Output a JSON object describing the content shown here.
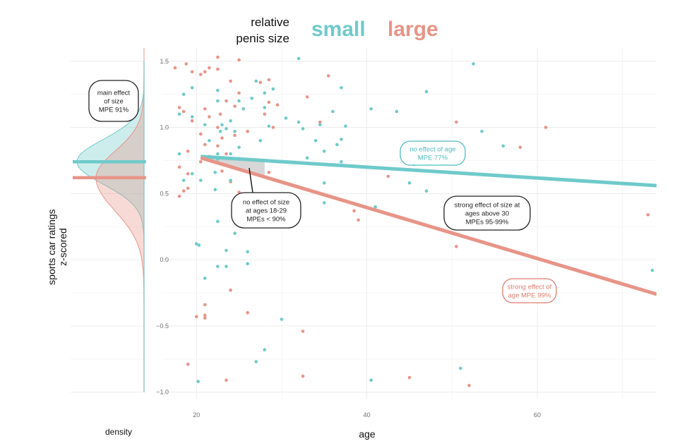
{
  "chart_data": {
    "type": "scatter",
    "title": "",
    "legend": {
      "title_lines": [
        "relative",
        "penis size"
      ],
      "entries": [
        {
          "label": "small",
          "color": "#6fcaca"
        },
        {
          "label": "large",
          "color": "#e89488"
        }
      ],
      "placement": "top-center"
    },
    "xlabel": "age",
    "ylabel_lines": [
      "sports car ratings",
      "z-scored"
    ],
    "density_label": "density",
    "xlim": [
      16,
      74
    ],
    "ylim": [
      -1.05,
      1.6
    ],
    "x_ticks": [
      20,
      40,
      60
    ],
    "y_ticks": [
      1.5,
      1.0,
      0.5,
      0.0,
      -0.5,
      -1.0
    ],
    "y_tick_labels": [
      "1.5",
      "1.0",
      "0.5",
      "0.0",
      "−0.5",
      "−1.0"
    ],
    "grid": true,
    "series": [
      {
        "name": "small",
        "color": "#6fcaca",
        "regression": {
          "x": [
            20.5,
            74
          ],
          "y": [
            0.78,
            0.56
          ]
        },
        "density_mean": 0.74,
        "points": [
          [
            18.5,
            1.25
          ],
          [
            19.5,
            1.3
          ],
          [
            18,
            1.1
          ],
          [
            19.5,
            1.08
          ],
          [
            21,
            1.02
          ],
          [
            22.5,
            1.28
          ],
          [
            22.5,
            1.2
          ],
          [
            23,
            1.02
          ],
          [
            22.8,
            0.97
          ],
          [
            21.5,
            0.9
          ],
          [
            22.5,
            0.8
          ],
          [
            22.2,
            0.66
          ],
          [
            22.2,
            0.53
          ],
          [
            22.5,
            0.76
          ],
          [
            24,
            0.8
          ],
          [
            25,
            0.85
          ],
          [
            24.5,
            0.97
          ],
          [
            23.5,
            0.99
          ],
          [
            24,
            1.05
          ],
          [
            25.5,
            1.14
          ],
          [
            25,
            1.2
          ],
          [
            27,
            1.35
          ],
          [
            26.5,
            1.22
          ],
          [
            28,
            1.26
          ],
          [
            29,
            1.29
          ],
          [
            28,
            1.15
          ],
          [
            28.5,
            1.01
          ],
          [
            27.5,
            0.9
          ],
          [
            30.5,
            1.07
          ],
          [
            32,
            1.04
          ],
          [
            32.5,
            0.99
          ],
          [
            32,
            1.52
          ],
          [
            34.5,
            1.02
          ],
          [
            33,
            0.77
          ],
          [
            34,
            0.9
          ],
          [
            35,
            0.82
          ],
          [
            36,
            1.12
          ],
          [
            36.5,
            0.87
          ],
          [
            37,
            0.91
          ],
          [
            37,
            1.3
          ],
          [
            37.5,
            1.01
          ],
          [
            37,
            0.74
          ],
          [
            35,
            0.58
          ],
          [
            35,
            0.43
          ],
          [
            40.5,
            1.14
          ],
          [
            41,
            0.4
          ],
          [
            43.5,
            1.12
          ],
          [
            45.5,
            0.72
          ],
          [
            47,
            1.27
          ],
          [
            45,
            0.58
          ],
          [
            47,
            0.52
          ],
          [
            50.5,
            0.85
          ],
          [
            52.5,
            1.48
          ],
          [
            53.5,
            0.97
          ],
          [
            56,
            0.86
          ],
          [
            73.5,
            -0.08
          ],
          [
            20,
            0.12
          ],
          [
            20.3,
            0.11
          ],
          [
            21,
            -0.14
          ],
          [
            22.5,
            -0.05
          ],
          [
            23.5,
            -0.05
          ],
          [
            22.5,
            0.29
          ],
          [
            23.5,
            0.07
          ],
          [
            24.5,
            0.2
          ],
          [
            26,
            0.06
          ],
          [
            26,
            -0.03
          ],
          [
            30,
            -0.45
          ],
          [
            28,
            -0.68
          ],
          [
            27,
            -0.77
          ],
          [
            20.2,
            -0.92
          ],
          [
            40.5,
            -0.91
          ],
          [
            51,
            -0.82
          ],
          [
            18.5,
            0.6
          ],
          [
            19.5,
            0.65
          ],
          [
            20.5,
            0.6
          ],
          [
            18,
            0.8
          ],
          [
            24,
            0.6
          ]
        ]
      },
      {
        "name": "large",
        "color": "#e89488",
        "regression": {
          "x": [
            20.5,
            74
          ],
          "y": [
            0.77,
            -0.26
          ]
        },
        "density_mean": 0.62,
        "points": [
          [
            17.5,
            1.45
          ],
          [
            18.8,
            1.48
          ],
          [
            19.5,
            1.42
          ],
          [
            18,
            1.15
          ],
          [
            18.5,
            1.12
          ],
          [
            19.5,
            1.05
          ],
          [
            21,
            1.42
          ],
          [
            20.5,
            1.4
          ],
          [
            21.5,
            1.45
          ],
          [
            22.5,
            1.44
          ],
          [
            22.5,
            1.53
          ],
          [
            21,
            1.14
          ],
          [
            21.5,
            1.08
          ],
          [
            22.8,
            1.1
          ],
          [
            23.5,
            1.2
          ],
          [
            24.5,
            1.16
          ],
          [
            25.5,
            1.14
          ],
          [
            25,
            1.26
          ],
          [
            24,
            1.35
          ],
          [
            25,
            1.51
          ],
          [
            27.5,
            1.34
          ],
          [
            28.5,
            1.36
          ],
          [
            28.5,
            1.19
          ],
          [
            29.5,
            1.17
          ],
          [
            28,
            1.1
          ],
          [
            29,
            1.0
          ],
          [
            26,
            0.97
          ],
          [
            24.5,
            0.94
          ],
          [
            23,
            0.92
          ],
          [
            22.5,
            0.86
          ],
          [
            23.5,
            0.8
          ],
          [
            20.5,
            0.95
          ],
          [
            21,
            0.87
          ],
          [
            21.5,
            0.78
          ],
          [
            19,
            0.82
          ],
          [
            18,
            0.7
          ],
          [
            19,
            0.65
          ],
          [
            18.5,
            0.52
          ],
          [
            19,
            0.54
          ],
          [
            20.5,
            0.74
          ],
          [
            23,
            0.67
          ],
          [
            24,
            0.59
          ],
          [
            25,
            0.51
          ],
          [
            27,
            0.44
          ],
          [
            28.5,
            0.66
          ],
          [
            30,
            0.49
          ],
          [
            29,
            0.43
          ],
          [
            31,
            0.43
          ],
          [
            32,
            0.36
          ],
          [
            33,
            1.23
          ],
          [
            34.5,
            1.04
          ],
          [
            35.5,
            1.39
          ],
          [
            38.5,
            0.37
          ],
          [
            39,
            0.3
          ],
          [
            42.5,
            0.63
          ],
          [
            50.5,
            1.04
          ],
          [
            58,
            0.85
          ],
          [
            61,
            1.0
          ],
          [
            73,
            0.34
          ],
          [
            50.5,
            0.1
          ],
          [
            24,
            -0.23
          ],
          [
            26,
            -0.4
          ],
          [
            21,
            -0.34
          ],
          [
            21,
            -0.42
          ],
          [
            20,
            -0.43
          ],
          [
            21,
            -0.44
          ],
          [
            32.5,
            -0.54
          ],
          [
            19,
            -0.79
          ],
          [
            23.5,
            -0.91
          ],
          [
            32.5,
            -0.88
          ],
          [
            45,
            -0.89
          ],
          [
            52,
            -0.95
          ],
          [
            18,
            0.48
          ],
          [
            22.5,
            1.0
          ]
        ]
      }
    ],
    "annotations": [
      {
        "name": "main-effect",
        "color": "#222222",
        "lines": [
          "main effect",
          "of size",
          "MPE 91%"
        ]
      },
      {
        "name": "small-age-effect",
        "color": "#4fbcc0",
        "lines": [
          "no effect of age",
          "MPE 77%"
        ]
      },
      {
        "name": "young-size-effect",
        "color": "#222222",
        "lines": [
          "no effect of size",
          "at ages 18-29",
          "MPEs < 90%"
        ]
      },
      {
        "name": "older-size-effect",
        "color": "#222222",
        "lines": [
          "strong effect of size at",
          "ages above 30",
          "MPEs 95-99%"
        ]
      },
      {
        "name": "large-age-effect",
        "color": "#e07b6e",
        "lines": [
          "strong effect of",
          "age MPE 99%"
        ]
      }
    ]
  }
}
